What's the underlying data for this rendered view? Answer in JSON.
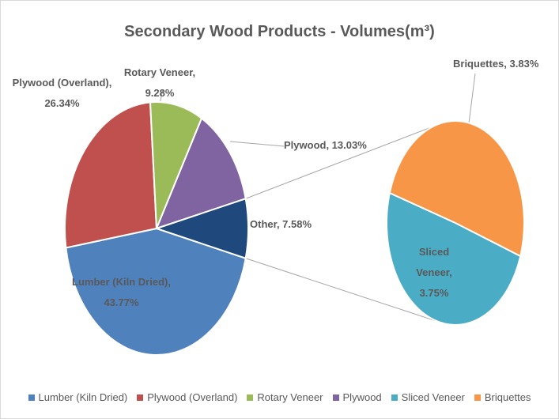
{
  "chart_data": {
    "type": "pie",
    "title": "Secondary Wood Products - Volumes(m³)",
    "categories": [
      "Lumber (Kiln Dried)",
      "Plywood (Overland)",
      "Rotary Veneer",
      "Plywood",
      "Sliced Veneer",
      "Briquettes"
    ],
    "values": [
      43.77,
      26.34,
      9.28,
      13.03,
      3.75,
      3.83
    ],
    "value_labels": [
      "Lumber (Kiln Dried), 43.77%",
      "Plywood (Overland), 26.34%",
      "Rotary Veneer, 9.28%",
      "Plywood, 13.03%",
      "Sliced Veneer, 3.75%",
      "Briquettes, 3.83%"
    ],
    "colors": [
      "#4f81bd",
      "#c0504d",
      "#9bbb59",
      "#8064a2",
      "#4bacc6",
      "#f79646"
    ],
    "secondary_slices": 2,
    "other": {
      "value": 7.58,
      "value_label": "Other, 7.58%",
      "color": "#1f497d"
    },
    "legend": "bottom"
  }
}
